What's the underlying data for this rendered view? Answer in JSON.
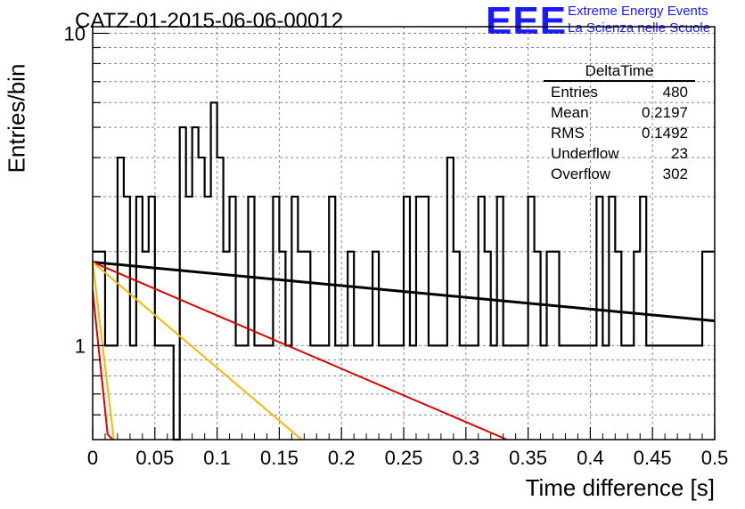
{
  "title": "CATZ-01-2015-06-06-00012",
  "logo": {
    "mark": "EEE",
    "line1": "Extreme Energy Events",
    "line2": "La Scienza nelle Scuole",
    "color": "#1a1aff"
  },
  "stats_box": {
    "title": "DeltaTime",
    "rows": [
      {
        "label": "Entries",
        "value": "480"
      },
      {
        "label": "Mean",
        "value": "0.2197"
      },
      {
        "label": "RMS",
        "value": "0.1492"
      },
      {
        "label": "Underflow",
        "value": "23"
      },
      {
        "label": "Overflow",
        "value": "302"
      }
    ]
  },
  "chart_data": {
    "type": "line",
    "xlabel": "Time difference [s]",
    "ylabel": "Entries/bin",
    "xlim": [
      0,
      0.5
    ],
    "ylim": [
      0.5,
      10.5
    ],
    "yscale": "log",
    "grid": true,
    "x_ticks": [
      "0",
      "0.05",
      "0.1",
      "0.15",
      "0.2",
      "0.25",
      "0.3",
      "0.35",
      "0.4",
      "0.45",
      "0.5"
    ],
    "y_ticks": [
      "1",
      "10"
    ],
    "histogram": {
      "bin_width": 0.005,
      "color": "#000000",
      "counts": [
        2,
        2,
        1,
        1,
        4,
        3,
        1,
        3,
        2,
        3,
        1,
        1,
        1,
        0,
        5,
        3,
        5,
        4,
        3,
        6,
        4,
        2,
        3,
        1,
        1,
        3,
        1,
        1,
        1,
        3,
        2,
        1,
        3,
        2,
        2,
        1,
        1,
        1,
        3,
        1,
        1,
        2,
        1,
        1,
        1,
        2,
        1,
        1,
        1,
        1,
        3,
        1,
        3,
        3,
        1,
        1,
        1,
        4,
        2,
        1,
        1,
        1,
        3,
        2,
        1,
        3,
        1,
        1,
        1,
        1,
        3,
        2,
        1,
        2,
        2,
        1,
        1,
        1,
        1,
        1,
        1,
        3,
        1,
        3,
        2,
        1,
        1,
        2,
        3,
        1,
        1,
        1,
        1,
        1,
        1,
        1,
        1,
        1,
        2,
        2
      ]
    },
    "fits": [
      {
        "color": "#000000",
        "x": [
          0,
          0.5
        ],
        "y": [
          1.85,
          1.2
        ]
      },
      {
        "color": "#dd0000",
        "x": [
          0,
          0.333
        ],
        "y": [
          1.85,
          0.5
        ]
      },
      {
        "color": "#f5b800",
        "x": [
          0,
          0.168
        ],
        "y": [
          1.85,
          0.5
        ]
      },
      {
        "color": "#f5b800",
        "x": [
          0,
          0.017
        ],
        "y": [
          1.85,
          0.5
        ]
      },
      {
        "color": "#dd0000",
        "x": [
          0,
          0.012,
          0.016
        ],
        "y": [
          1.5,
          0.52,
          0.5
        ]
      }
    ]
  }
}
